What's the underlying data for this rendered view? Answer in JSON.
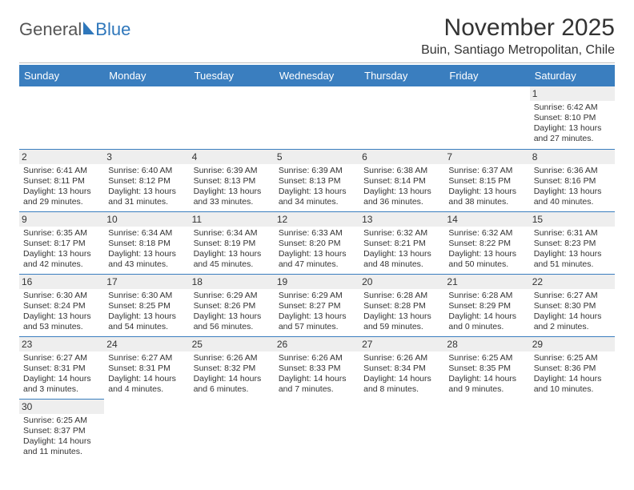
{
  "logo": {
    "general": "General",
    "blue": "Blue"
  },
  "header": {
    "month_title": "November 2025",
    "location": "Buin, Santiago Metropolitan, Chile"
  },
  "colors": {
    "header_bg": "#3a7ebf",
    "header_text": "#ffffff",
    "rule": "#3a7ebf",
    "daynum_bg": "#eeeeee",
    "logo_blue": "#2f77bb"
  },
  "weekdays": [
    "Sunday",
    "Monday",
    "Tuesday",
    "Wednesday",
    "Thursday",
    "Friday",
    "Saturday"
  ],
  "weeks": [
    [
      null,
      null,
      null,
      null,
      null,
      null,
      {
        "n": "1",
        "sr": "Sunrise: 6:42 AM",
        "ss": "Sunset: 8:10 PM",
        "dl1": "Daylight: 13 hours",
        "dl2": "and 27 minutes."
      }
    ],
    [
      {
        "n": "2",
        "sr": "Sunrise: 6:41 AM",
        "ss": "Sunset: 8:11 PM",
        "dl1": "Daylight: 13 hours",
        "dl2": "and 29 minutes."
      },
      {
        "n": "3",
        "sr": "Sunrise: 6:40 AM",
        "ss": "Sunset: 8:12 PM",
        "dl1": "Daylight: 13 hours",
        "dl2": "and 31 minutes."
      },
      {
        "n": "4",
        "sr": "Sunrise: 6:39 AM",
        "ss": "Sunset: 8:13 PM",
        "dl1": "Daylight: 13 hours",
        "dl2": "and 33 minutes."
      },
      {
        "n": "5",
        "sr": "Sunrise: 6:39 AM",
        "ss": "Sunset: 8:13 PM",
        "dl1": "Daylight: 13 hours",
        "dl2": "and 34 minutes."
      },
      {
        "n": "6",
        "sr": "Sunrise: 6:38 AM",
        "ss": "Sunset: 8:14 PM",
        "dl1": "Daylight: 13 hours",
        "dl2": "and 36 minutes."
      },
      {
        "n": "7",
        "sr": "Sunrise: 6:37 AM",
        "ss": "Sunset: 8:15 PM",
        "dl1": "Daylight: 13 hours",
        "dl2": "and 38 minutes."
      },
      {
        "n": "8",
        "sr": "Sunrise: 6:36 AM",
        "ss": "Sunset: 8:16 PM",
        "dl1": "Daylight: 13 hours",
        "dl2": "and 40 minutes."
      }
    ],
    [
      {
        "n": "9",
        "sr": "Sunrise: 6:35 AM",
        "ss": "Sunset: 8:17 PM",
        "dl1": "Daylight: 13 hours",
        "dl2": "and 42 minutes."
      },
      {
        "n": "10",
        "sr": "Sunrise: 6:34 AM",
        "ss": "Sunset: 8:18 PM",
        "dl1": "Daylight: 13 hours",
        "dl2": "and 43 minutes."
      },
      {
        "n": "11",
        "sr": "Sunrise: 6:34 AM",
        "ss": "Sunset: 8:19 PM",
        "dl1": "Daylight: 13 hours",
        "dl2": "and 45 minutes."
      },
      {
        "n": "12",
        "sr": "Sunrise: 6:33 AM",
        "ss": "Sunset: 8:20 PM",
        "dl1": "Daylight: 13 hours",
        "dl2": "and 47 minutes."
      },
      {
        "n": "13",
        "sr": "Sunrise: 6:32 AM",
        "ss": "Sunset: 8:21 PM",
        "dl1": "Daylight: 13 hours",
        "dl2": "and 48 minutes."
      },
      {
        "n": "14",
        "sr": "Sunrise: 6:32 AM",
        "ss": "Sunset: 8:22 PM",
        "dl1": "Daylight: 13 hours",
        "dl2": "and 50 minutes."
      },
      {
        "n": "15",
        "sr": "Sunrise: 6:31 AM",
        "ss": "Sunset: 8:23 PM",
        "dl1": "Daylight: 13 hours",
        "dl2": "and 51 minutes."
      }
    ],
    [
      {
        "n": "16",
        "sr": "Sunrise: 6:30 AM",
        "ss": "Sunset: 8:24 PM",
        "dl1": "Daylight: 13 hours",
        "dl2": "and 53 minutes."
      },
      {
        "n": "17",
        "sr": "Sunrise: 6:30 AM",
        "ss": "Sunset: 8:25 PM",
        "dl1": "Daylight: 13 hours",
        "dl2": "and 54 minutes."
      },
      {
        "n": "18",
        "sr": "Sunrise: 6:29 AM",
        "ss": "Sunset: 8:26 PM",
        "dl1": "Daylight: 13 hours",
        "dl2": "and 56 minutes."
      },
      {
        "n": "19",
        "sr": "Sunrise: 6:29 AM",
        "ss": "Sunset: 8:27 PM",
        "dl1": "Daylight: 13 hours",
        "dl2": "and 57 minutes."
      },
      {
        "n": "20",
        "sr": "Sunrise: 6:28 AM",
        "ss": "Sunset: 8:28 PM",
        "dl1": "Daylight: 13 hours",
        "dl2": "and 59 minutes."
      },
      {
        "n": "21",
        "sr": "Sunrise: 6:28 AM",
        "ss": "Sunset: 8:29 PM",
        "dl1": "Daylight: 14 hours",
        "dl2": "and 0 minutes."
      },
      {
        "n": "22",
        "sr": "Sunrise: 6:27 AM",
        "ss": "Sunset: 8:30 PM",
        "dl1": "Daylight: 14 hours",
        "dl2": "and 2 minutes."
      }
    ],
    [
      {
        "n": "23",
        "sr": "Sunrise: 6:27 AM",
        "ss": "Sunset: 8:31 PM",
        "dl1": "Daylight: 14 hours",
        "dl2": "and 3 minutes."
      },
      {
        "n": "24",
        "sr": "Sunrise: 6:27 AM",
        "ss": "Sunset: 8:31 PM",
        "dl1": "Daylight: 14 hours",
        "dl2": "and 4 minutes."
      },
      {
        "n": "25",
        "sr": "Sunrise: 6:26 AM",
        "ss": "Sunset: 8:32 PM",
        "dl1": "Daylight: 14 hours",
        "dl2": "and 6 minutes."
      },
      {
        "n": "26",
        "sr": "Sunrise: 6:26 AM",
        "ss": "Sunset: 8:33 PM",
        "dl1": "Daylight: 14 hours",
        "dl2": "and 7 minutes."
      },
      {
        "n": "27",
        "sr": "Sunrise: 6:26 AM",
        "ss": "Sunset: 8:34 PM",
        "dl1": "Daylight: 14 hours",
        "dl2": "and 8 minutes."
      },
      {
        "n": "28",
        "sr": "Sunrise: 6:25 AM",
        "ss": "Sunset: 8:35 PM",
        "dl1": "Daylight: 14 hours",
        "dl2": "and 9 minutes."
      },
      {
        "n": "29",
        "sr": "Sunrise: 6:25 AM",
        "ss": "Sunset: 8:36 PM",
        "dl1": "Daylight: 14 hours",
        "dl2": "and 10 minutes."
      }
    ],
    [
      {
        "n": "30",
        "sr": "Sunrise: 6:25 AM",
        "ss": "Sunset: 8:37 PM",
        "dl1": "Daylight: 14 hours",
        "dl2": "and 11 minutes."
      },
      null,
      null,
      null,
      null,
      null,
      null
    ]
  ]
}
